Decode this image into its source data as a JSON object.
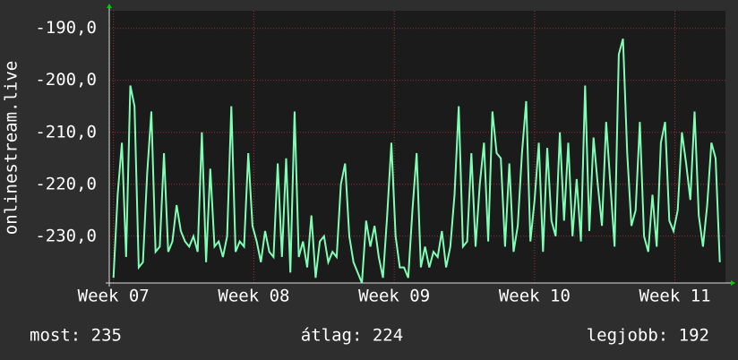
{
  "chart_data": {
    "type": "line",
    "y_label": "onlinestream.live",
    "x": [
      7.0,
      7.03,
      7.06,
      7.09,
      7.12,
      7.15,
      7.18,
      7.21,
      7.24,
      7.27,
      7.3,
      7.33,
      7.36,
      7.39,
      7.42,
      7.45,
      7.48,
      7.51,
      7.54,
      7.57,
      7.6,
      7.63,
      7.66,
      7.69,
      7.72,
      7.75,
      7.78,
      7.81,
      7.84,
      7.87,
      7.9,
      7.93,
      7.96,
      7.99,
      8.02,
      8.05,
      8.08,
      8.11,
      8.14,
      8.17,
      8.2,
      8.23,
      8.26,
      8.29,
      8.32,
      8.35,
      8.38,
      8.41,
      8.44,
      8.47,
      8.5,
      8.53,
      8.56,
      8.59,
      8.62,
      8.65,
      8.68,
      8.71,
      8.74,
      8.77,
      8.8,
      8.83,
      8.86,
      8.89,
      8.92,
      8.95,
      8.98,
      9.01,
      9.04,
      9.07,
      9.1,
      9.13,
      9.16,
      9.19,
      9.22,
      9.25,
      9.28,
      9.31,
      9.34,
      9.37,
      9.4,
      9.43,
      9.46,
      9.49,
      9.52,
      9.55,
      9.58,
      9.61,
      9.64,
      9.67,
      9.7,
      9.73,
      9.76,
      9.79,
      9.82,
      9.85,
      9.88,
      9.91,
      9.94,
      9.97,
      10.0,
      10.03,
      10.06,
      10.09,
      10.12,
      10.15,
      10.18,
      10.21,
      10.24,
      10.27,
      10.3,
      10.33,
      10.36,
      10.39,
      10.42,
      10.45,
      10.48,
      10.51,
      10.54,
      10.57,
      10.6,
      10.63,
      10.66,
      10.69,
      10.72,
      10.75,
      10.78,
      10.81,
      10.84,
      10.87,
      10.9,
      10.93,
      10.96,
      10.99,
      11.02,
      11.05,
      11.08,
      11.11,
      11.14,
      11.17,
      11.2,
      11.23,
      11.26,
      11.29,
      11.32
    ],
    "values": [
      -238,
      -222,
      -212,
      -234,
      -201,
      -205,
      -236,
      -235,
      -218,
      -206,
      -233,
      -232,
      -214,
      -233,
      -231,
      -224,
      -229,
      -231,
      -232,
      -230,
      -233,
      -210,
      -235,
      -217,
      -232,
      -231,
      -234,
      -230,
      -205,
      -233,
      -231,
      -232,
      -214,
      -228,
      -231,
      -235,
      -229,
      -233,
      -234,
      -216,
      -234,
      -215,
      -237,
      -206,
      -234,
      -231,
      -236,
      -226,
      -238,
      -231,
      -230,
      -235,
      -233,
      -234,
      -220,
      -216,
      -230,
      -235,
      -237,
      -239,
      -227,
      -232,
      -228,
      -234,
      -238,
      -226,
      -212,
      -230,
      -236,
      -236,
      -238,
      -225,
      -214,
      -236,
      -232,
      -236,
      -233,
      -234,
      -229,
      -236,
      -232,
      -222,
      -205,
      -232,
      -231,
      -214,
      -232,
      -220,
      -212,
      -231,
      -206,
      -214,
      -215,
      -232,
      -216,
      -233,
      -228,
      -214,
      -204,
      -231,
      -223,
      -212,
      -233,
      -213,
      -227,
      -230,
      -210,
      -227,
      -212,
      -230,
      -219,
      -231,
      -201,
      -229,
      -211,
      -220,
      -228,
      -208,
      -220,
      -232,
      -195,
      -192,
      -214,
      -228,
      -225,
      -208,
      -230,
      -233,
      -222,
      -232,
      -212,
      -208,
      -227,
      -229,
      -225,
      -210,
      -216,
      -223,
      -206,
      -226,
      -232,
      -224,
      -212,
      -215,
      -235
    ],
    "color": "#7fffb4",
    "xlim": [
      6.97,
      11.36
    ],
    "ylim": [
      -239,
      -186.6
    ],
    "xticks": [
      {
        "value": 7,
        "label": "Week 07"
      },
      {
        "value": 8,
        "label": "Week 08"
      },
      {
        "value": 9,
        "label": "Week 09"
      },
      {
        "value": 10,
        "label": "Week 10"
      },
      {
        "value": 11,
        "label": "Week 11"
      }
    ],
    "yticks": [
      {
        "value": -190,
        "label": "-190,0"
      },
      {
        "value": -200,
        "label": "-200,0"
      },
      {
        "value": -210,
        "label": "-210,0"
      },
      {
        "value": -220,
        "label": "-220,0"
      },
      {
        "value": -230,
        "label": "-230,0"
      }
    ],
    "grid": true,
    "stats": [
      "most: 235",
      "átlag: 224",
      "legjobb: 192"
    ]
  }
}
